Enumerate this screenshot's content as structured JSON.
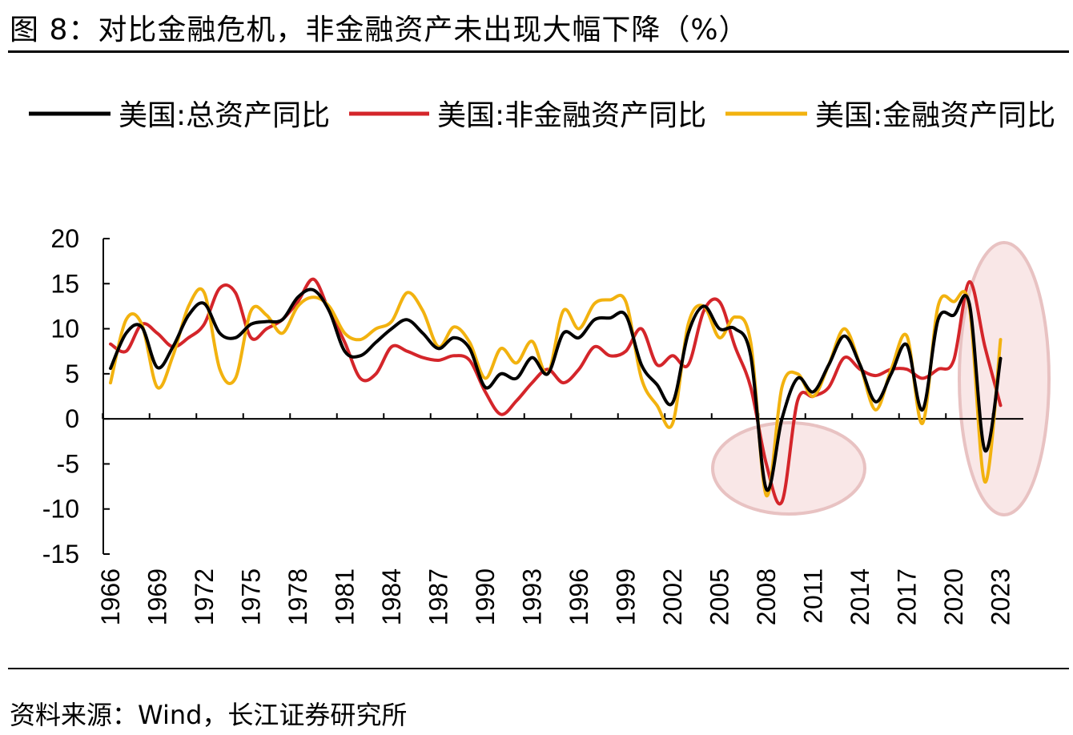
{
  "title": "图 8：对比金融危机，非金融资产未出现大幅下降（%）",
  "source": "资料来源：Wind，长江证券研究所",
  "colors": {
    "total": "#000000",
    "nonfinancial": "#d4252a",
    "financial": "#f2b20f",
    "highlight": "#e8c2c2"
  },
  "chart_data": {
    "type": "line",
    "title": "对比金融危机，非金融资产未出现大幅下降（%）",
    "xlabel": "",
    "ylabel": "",
    "ylim": [
      -15,
      20
    ],
    "yticks": [
      "20",
      "15",
      "10",
      "5",
      "0",
      "-5",
      "-10",
      "-15"
    ],
    "xticks": [
      "1966",
      "1969",
      "1972",
      "1975",
      "1978",
      "1981",
      "1984",
      "1987",
      "1990",
      "1993",
      "1996",
      "1999",
      "2002",
      "2005",
      "2008",
      "2011",
      "2014",
      "2017",
      "2020",
      "2023"
    ],
    "legend_position": "top",
    "x": [
      1966,
      1967,
      1968,
      1969,
      1970,
      1971,
      1972,
      1973,
      1974,
      1975,
      1976,
      1977,
      1978,
      1979,
      1980,
      1981,
      1982,
      1983,
      1984,
      1985,
      1986,
      1987,
      1988,
      1989,
      1990,
      1991,
      1992,
      1993,
      1994,
      1995,
      1996,
      1997,
      1998,
      1999,
      2000,
      2001,
      2002,
      2003,
      2004,
      2005,
      2006,
      2007,
      2008,
      2009,
      2010,
      2011,
      2012,
      2013,
      2014,
      2015,
      2016,
      2017,
      2018,
      2019,
      2020,
      2021,
      2022,
      2023
    ],
    "series": [
      {
        "name": "美国:总资产同比",
        "key": "total",
        "values": [
          5.6,
          9.5,
          10.2,
          5.7,
          8.0,
          11.5,
          12.8,
          9.5,
          9.0,
          10.5,
          10.8,
          11.0,
          13.5,
          14.3,
          12.0,
          7.5,
          7.0,
          8.5,
          10.0,
          11.0,
          9.5,
          7.8,
          9.0,
          7.8,
          3.5,
          5.0,
          4.5,
          6.8,
          5.0,
          9.5,
          9.0,
          11.0,
          11.2,
          11.5,
          6.0,
          3.8,
          1.8,
          9.5,
          12.5,
          10.0,
          10.0,
          7.0,
          -7.8,
          0.0,
          4.5,
          3.0,
          6.0,
          9.2,
          6.0,
          1.9,
          5.0,
          8.2,
          1.0,
          11.0,
          11.5,
          12.8,
          -3.5,
          6.7
        ]
      },
      {
        "name": "美国:非金融资产同比",
        "key": "nonfinancial",
        "values": [
          8.3,
          7.5,
          10.5,
          9.5,
          8.0,
          9.0,
          10.5,
          14.5,
          14.0,
          9.0,
          10.0,
          11.0,
          13.0,
          15.5,
          12.0,
          8.5,
          4.5,
          5.0,
          8.0,
          7.5,
          6.8,
          6.5,
          7.0,
          6.5,
          3.0,
          0.5,
          2.0,
          4.0,
          5.5,
          4.0,
          5.5,
          8.0,
          7.0,
          7.5,
          10.0,
          6.0,
          7.0,
          6.0,
          12.0,
          13.0,
          8.0,
          3.5,
          -5.0,
          -9.2,
          2.0,
          2.5,
          3.5,
          6.8,
          5.5,
          4.8,
          5.5,
          5.5,
          4.5,
          5.5,
          6.5,
          15.2,
          8.0,
          1.5
        ]
      },
      {
        "name": "美国:金融资产同比",
        "key": "financial",
        "values": [
          4.0,
          11.0,
          10.5,
          3.5,
          7.0,
          12.5,
          14.0,
          5.5,
          4.5,
          12.0,
          11.5,
          9.5,
          12.5,
          13.5,
          12.5,
          9.5,
          8.8,
          10.0,
          10.8,
          14.0,
          12.0,
          8.0,
          10.2,
          8.5,
          4.5,
          7.8,
          6.2,
          8.6,
          5.0,
          12.0,
          10.0,
          12.8,
          13.2,
          13.0,
          4.5,
          1.5,
          -0.5,
          10.5,
          12.5,
          9.0,
          11.3,
          8.5,
          -8.5,
          3.5,
          5.0,
          2.5,
          6.0,
          10.0,
          6.0,
          1.0,
          5.5,
          9.2,
          -0.5,
          12.5,
          13.0,
          12.5,
          -7.0,
          8.8
        ]
      }
    ]
  }
}
